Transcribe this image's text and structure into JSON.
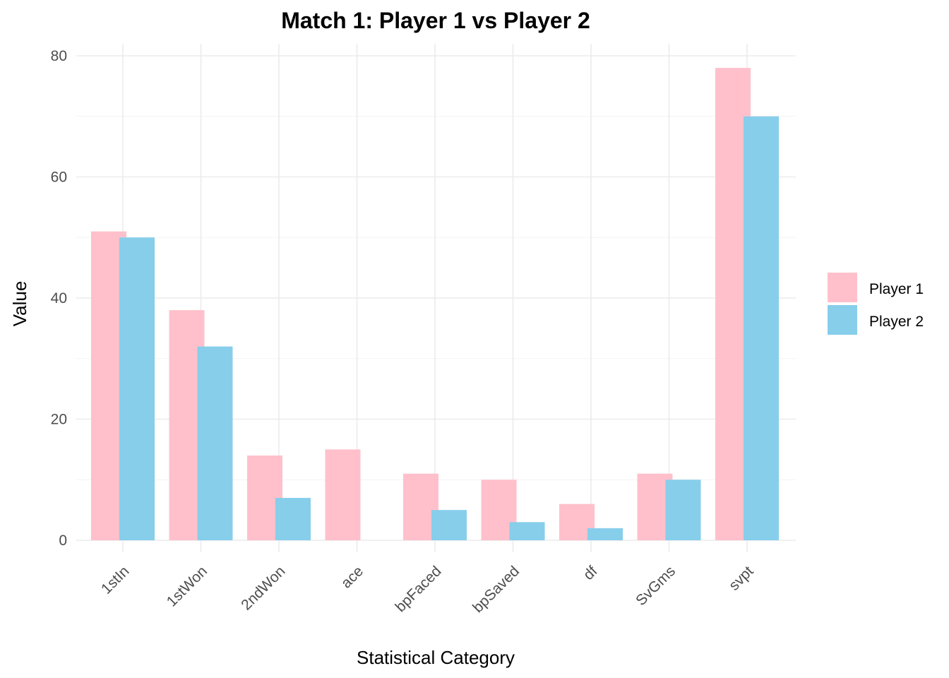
{
  "chart_data": {
    "type": "bar",
    "title": "Match 1: Player 1 vs Player 2",
    "xlabel": "Statistical Category",
    "ylabel": "Value",
    "categories": [
      "1stIn",
      "1stWon",
      "2ndWon",
      "ace",
      "bpFaced",
      "bpSaved",
      "df",
      "SvGms",
      "svpt"
    ],
    "series": [
      {
        "name": "Player 1",
        "color": "#ffc0cb",
        "values": [
          51,
          38,
          14,
          15,
          11,
          10,
          6,
          11,
          78
        ]
      },
      {
        "name": "Player 2",
        "color": "#87ceeb",
        "values": [
          50,
          32,
          7,
          0,
          5,
          3,
          2,
          10,
          70
        ]
      }
    ],
    "ylim": [
      0,
      80
    ],
    "yticks": [
      0,
      20,
      40,
      60,
      80
    ],
    "grid": true,
    "legend_position": "right",
    "x_tick_rotation_deg": -45
  }
}
